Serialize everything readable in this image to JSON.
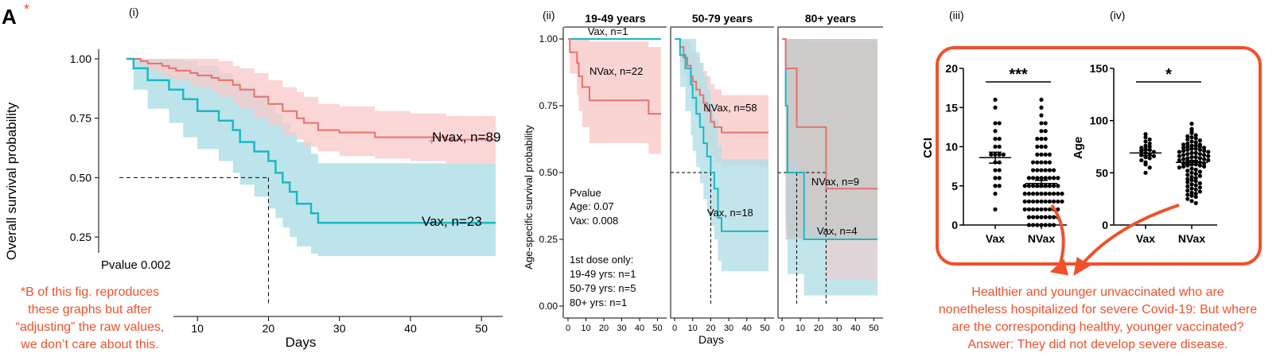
{
  "page": {
    "panel_letter": "A",
    "asterisk": "*",
    "note_lines": [
      "*B of this fig. reproduces",
      "these graphs but after",
      "“adjusting” the raw values,",
      "we don’t care about this."
    ],
    "annotation_lines": [
      "Healthier and younger unvaccinated who are",
      "nonetheless hospitalized for severe Covid-19: But where",
      "are the corresponding healthy, younger vaccinated?",
      "Answer: They did not develop severe disease."
    ],
    "colors": {
      "vax": "#1ab9c3",
      "nvax": "#e5736e",
      "vax_band": "#b2dfe6",
      "nvax_band": "#f8c9c8",
      "overlap_band": "#c5c5c5",
      "accent": "#f0512b"
    }
  },
  "chart_data": [
    {
      "id": "i",
      "panel_label": "(i)",
      "type": "line",
      "xlabel": "Days",
      "ylabel": "Overall survival probability",
      "xlim": [
        -1,
        53
      ],
      "ylim": [
        0.17,
        1.04
      ],
      "xticks": [
        10,
        20,
        30,
        40,
        50
      ],
      "yticks": [
        0.25,
        0.5,
        0.75,
        1.0
      ],
      "pvalue_text": "Pvalue 0.002",
      "median_x": 20,
      "series": [
        {
          "name": "Nvax",
          "label": "Nvax, n=89",
          "x": [
            0,
            2,
            3,
            5,
            6,
            7,
            9,
            10,
            12,
            13,
            15,
            16,
            18,
            20,
            22,
            24,
            25,
            27,
            30,
            35,
            40,
            45,
            52
          ],
          "y": [
            1.0,
            0.99,
            0.98,
            0.97,
            0.96,
            0.95,
            0.94,
            0.93,
            0.92,
            0.91,
            0.89,
            0.87,
            0.84,
            0.81,
            0.78,
            0.75,
            0.73,
            0.7,
            0.69,
            0.67,
            0.67,
            0.66,
            0.66
          ],
          "upper": [
            1.0,
            1.0,
            1.0,
            1.0,
            1.0,
            1.0,
            1.0,
            1.0,
            1.0,
            0.99,
            0.97,
            0.96,
            0.94,
            0.91,
            0.88,
            0.86,
            0.84,
            0.81,
            0.8,
            0.78,
            0.77,
            0.76,
            0.76
          ],
          "lower": [
            1.0,
            0.97,
            0.95,
            0.93,
            0.92,
            0.91,
            0.89,
            0.88,
            0.86,
            0.84,
            0.81,
            0.79,
            0.75,
            0.72,
            0.68,
            0.66,
            0.63,
            0.61,
            0.59,
            0.58,
            0.57,
            0.56,
            0.56
          ]
        },
        {
          "name": "Vax",
          "label": "Vax, n=23",
          "x": [
            0,
            1,
            3,
            6,
            8,
            10,
            13,
            15,
            16,
            18,
            20,
            21,
            22,
            23,
            24,
            26,
            27,
            35,
            52
          ],
          "y": [
            1.0,
            0.96,
            0.91,
            0.87,
            0.83,
            0.78,
            0.74,
            0.7,
            0.65,
            0.61,
            0.57,
            0.52,
            0.48,
            0.44,
            0.39,
            0.35,
            0.31,
            0.31,
            0.31
          ],
          "upper": [
            1.0,
            1.0,
            1.0,
            1.0,
            0.99,
            0.97,
            0.94,
            0.91,
            0.88,
            0.85,
            0.81,
            0.77,
            0.73,
            0.69,
            0.65,
            0.6,
            0.56,
            0.56,
            0.56
          ],
          "lower": [
            1.0,
            0.87,
            0.79,
            0.73,
            0.67,
            0.62,
            0.57,
            0.52,
            0.47,
            0.42,
            0.37,
            0.33,
            0.29,
            0.25,
            0.21,
            0.18,
            0.17,
            0.17,
            0.17
          ]
        }
      ]
    },
    {
      "id": "ii",
      "panel_label": "(ii)",
      "type": "line",
      "xlabel": "Days",
      "ylabel": "Age-specific survival probability",
      "yticks": [
        0.0,
        0.25,
        0.5,
        0.75,
        1.0
      ],
      "ytick_labels": [
        "0.00",
        "0.25",
        "0.50",
        "0.75",
        "1.00"
      ],
      "xticks": [
        0,
        10,
        20,
        30,
        40,
        50
      ],
      "ylim": [
        -0.03,
        1.05
      ],
      "xlim": [
        -2,
        53
      ],
      "pvalue_lines": [
        "Pvalue",
        "Age: 0.07",
        "Vax: 0.008"
      ],
      "dose_lines": [
        "1st dose only:",
        "19-49 yrs: n=1",
        "50-79 yrs: n=5",
        "80+ yrs: n=1"
      ],
      "facets": [
        {
          "title": "19-49 years",
          "series": [
            {
              "name": "Vax",
              "label": "Vax, n=1",
              "x": [
                0,
                52
              ],
              "y": [
                1.0,
                1.0
              ]
            },
            {
              "name": "NVax",
              "label": "NVax, n=22",
              "x": [
                0,
                1,
                5,
                6,
                8,
                10,
                12,
                20,
                22,
                24,
                27,
                30,
                40,
                45,
                52
              ],
              "y": [
                1.0,
                0.95,
                0.91,
                0.86,
                0.82,
                0.82,
                0.77,
                0.77,
                0.77,
                0.77,
                0.77,
                0.77,
                0.77,
                0.72,
                0.72
              ],
              "upper": [
                1.0,
                1.0,
                1.0,
                1.0,
                1.0,
                1.0,
                0.99,
                0.99,
                0.99,
                0.99,
                0.99,
                0.99,
                0.99,
                0.97,
                0.97
              ],
              "lower": [
                1.0,
                0.87,
                0.79,
                0.73,
                0.67,
                0.67,
                0.61,
                0.61,
                0.61,
                0.61,
                0.61,
                0.61,
                0.61,
                0.57,
                0.57
              ]
            }
          ]
        },
        {
          "title": "50-79 years",
          "series": [
            {
              "name": "NVax",
              "label": "NVax, n=58",
              "x": [
                0,
                3,
                5,
                7,
                9,
                10,
                12,
                14,
                16,
                18,
                20,
                22,
                26,
                30,
                52
              ],
              "y": [
                1.0,
                0.97,
                0.93,
                0.9,
                0.86,
                0.84,
                0.81,
                0.79,
                0.76,
                0.73,
                0.69,
                0.67,
                0.65,
                0.65,
                0.65
              ],
              "upper": [
                1.0,
                1.0,
                1.0,
                0.99,
                0.97,
                0.95,
                0.93,
                0.91,
                0.88,
                0.86,
                0.83,
                0.81,
                0.79,
                0.79,
                0.79
              ],
              "lower": [
                1.0,
                0.91,
                0.87,
                0.82,
                0.77,
                0.74,
                0.71,
                0.67,
                0.63,
                0.6,
                0.56,
                0.54,
                0.52,
                0.52,
                0.52
              ]
            },
            {
              "name": "Vax",
              "label": "Vax, n=18",
              "x": [
                0,
                3,
                6,
                9,
                10,
                12,
                14,
                16,
                18,
                20,
                22,
                24,
                26,
                28,
                52
              ],
              "y": [
                1.0,
                0.94,
                0.89,
                0.83,
                0.78,
                0.72,
                0.67,
                0.61,
                0.56,
                0.5,
                0.44,
                0.33,
                0.28,
                0.28,
                0.28
              ],
              "upper": [
                1.0,
                1.0,
                1.0,
                1.0,
                1.0,
                0.95,
                0.91,
                0.86,
                0.81,
                0.76,
                0.7,
                0.6,
                0.55,
                0.55,
                0.55
              ],
              "lower": [
                1.0,
                0.82,
                0.73,
                0.64,
                0.58,
                0.52,
                0.46,
                0.4,
                0.35,
                0.3,
                0.25,
                0.17,
                0.13,
                0.13,
                0.13
              ]
            }
          ]
        },
        {
          "title": "80+ years",
          "series": [
            {
              "name": "Vax",
              "label": "Vax, n=4",
              "x": [
                0,
                2,
                3,
                8,
                12,
                52
              ],
              "y": [
                1.0,
                0.75,
                0.5,
                0.5,
                0.25,
                0.25
              ],
              "upper": [
                1.0,
                1.0,
                1.0,
                1.0,
                0.99,
                0.99
              ],
              "lower": [
                1.0,
                0.3,
                0.12,
                0.12,
                0.04,
                0.04
              ]
            },
            {
              "name": "NVax",
              "label": "NVax, n=9",
              "x": [
                0,
                2,
                3,
                8,
                12,
                24,
                52
              ],
              "y": [
                1.0,
                0.89,
                0.89,
                0.67,
                0.67,
                0.44,
                0.44
              ],
              "upper": [
                1.0,
                1.0,
                1.0,
                1.0,
                1.0,
                1.0,
                1.0
              ],
              "lower": [
                1.0,
                0.55,
                0.55,
                0.3,
                0.3,
                0.1,
                0.1
              ]
            }
          ],
          "median_lines": [
            8,
            24
          ]
        }
      ]
    },
    {
      "id": "iii",
      "panel_label": "(iii)",
      "type": "scatter",
      "ylabel": "CCI",
      "ylim": [
        0,
        20
      ],
      "yticks": [
        0,
        5,
        10,
        15,
        20
      ],
      "categories": [
        "Vax",
        "NVax"
      ],
      "significance": "***",
      "groups": [
        {
          "name": "Vax",
          "mean": 8.6,
          "sem": 0.7,
          "values": [
            16,
            15,
            13,
            13,
            12,
            11,
            11,
            10,
            10,
            9,
            9,
            9,
            9,
            8,
            8,
            7,
            7,
            6,
            6,
            5,
            5,
            4,
            2
          ]
        },
        {
          "name": "NVax",
          "mean": 5.3,
          "sem": 0.4,
          "values": [
            16,
            15,
            14,
            13,
            13,
            12,
            12,
            11,
            11,
            11,
            10,
            10,
            10,
            9,
            9,
            9,
            9,
            8,
            8,
            8,
            8,
            8,
            7,
            7,
            7,
            7,
            7,
            7,
            6,
            6,
            6,
            6,
            6,
            6,
            6,
            6,
            5,
            5,
            5,
            5,
            5,
            5,
            5,
            5,
            5,
            4,
            4,
            4,
            4,
            4,
            4,
            4,
            4,
            4,
            4,
            3,
            3,
            3,
            3,
            3,
            3,
            3,
            3,
            3,
            3,
            2,
            2,
            2,
            2,
            2,
            2,
            2,
            2,
            2,
            1,
            1,
            1,
            1,
            1,
            1,
            1,
            1,
            0,
            0,
            0,
            0,
            0,
            0,
            0
          ]
        }
      ]
    },
    {
      "id": "iv",
      "panel_label": "(iv)",
      "type": "scatter",
      "ylabel": "Age",
      "ylim": [
        0,
        150
      ],
      "yticks": [
        0,
        50,
        100,
        150
      ],
      "categories": [
        "Vax",
        "NVax"
      ],
      "significance": "*",
      "groups": [
        {
          "name": "Vax",
          "mean": 69,
          "sem": 2.5,
          "values": [
            87,
            84,
            82,
            80,
            78,
            76,
            75,
            74,
            73,
            72,
            71,
            70,
            69,
            68,
            67,
            66,
            65,
            64,
            62,
            60,
            58,
            55,
            50
          ]
        },
        {
          "name": "NVax",
          "mean": 60,
          "sem": 1.8,
          "values": [
            97,
            92,
            90,
            88,
            86,
            85,
            84,
            83,
            82,
            81,
            80,
            79,
            78,
            77,
            77,
            76,
            76,
            75,
            75,
            74,
            74,
            73,
            73,
            72,
            72,
            71,
            71,
            70,
            70,
            69,
            69,
            68,
            68,
            67,
            67,
            66,
            66,
            65,
            65,
            64,
            64,
            63,
            63,
            62,
            62,
            61,
            61,
            60,
            60,
            59,
            59,
            58,
            58,
            57,
            57,
            56,
            56,
            55,
            54,
            53,
            52,
            51,
            50,
            49,
            48,
            47,
            46,
            45,
            44,
            43,
            42,
            41,
            40,
            39,
            38,
            37,
            36,
            35,
            34,
            33,
            32,
            31,
            30,
            29,
            28,
            27,
            25,
            23,
            21
          ]
        }
      ]
    }
  ]
}
